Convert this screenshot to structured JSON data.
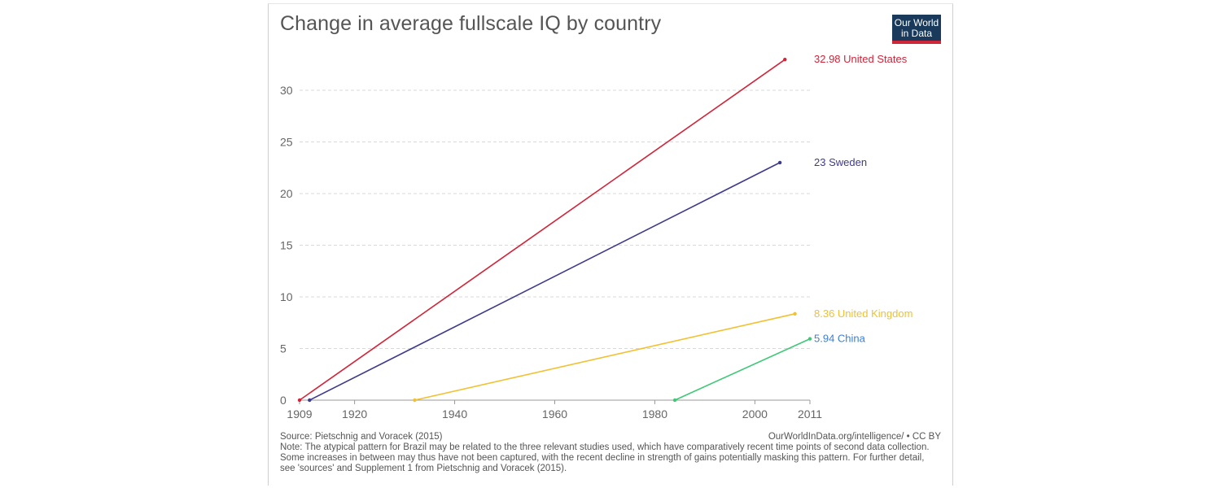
{
  "title": "Change in average fullscale IQ by country",
  "logo": {
    "line1": "Our World",
    "line2": "in Data",
    "bg_color": "#1a3a5c",
    "accent_color": "#d1253a"
  },
  "footer": {
    "source": "Source: Pietschnig and Voracek (2015)",
    "credit": "OurWorldInData.org/intelligence/ • CC BY",
    "note": "Note: The atypical pattern for Brazil may be related to the three relevant studies used, which have comparatively recent time points of second data collection. Some increases in between may thus have not been captured, with the recent decline in strength of gains potentially masking this pattern. For further detail, see 'sources' and Supplement 1 from Pietschnig and Voracek (2015)."
  },
  "chart_data": {
    "type": "line",
    "title": "Change in average fullscale IQ by country",
    "xlabel": "",
    "ylabel": "",
    "xlim": [
      1909,
      2011
    ],
    "ylim": [
      0,
      33
    ],
    "x_ticks": [
      "1909",
      "1920",
      "1940",
      "1960",
      "1980",
      "2000",
      "2011"
    ],
    "y_ticks": [
      "0",
      "5",
      "10",
      "15",
      "20",
      "25",
      "30"
    ],
    "grid": "horizontal dashed",
    "series": [
      {
        "name": "United States",
        "label": "32.98 United States",
        "color": "#d1253a",
        "points": [
          [
            1909,
            0
          ],
          [
            2006,
            32.98
          ]
        ]
      },
      {
        "name": "Sweden",
        "label": "23 Sweden",
        "color": "#3e3a8c",
        "points": [
          [
            1911,
            0
          ],
          [
            2005,
            23
          ]
        ]
      },
      {
        "name": "United Kingdom",
        "label": "8.36 United Kingdom",
        "color": "#f2c030",
        "points": [
          [
            1932,
            0
          ],
          [
            2008,
            8.36
          ]
        ]
      },
      {
        "name": "China",
        "label": "5.94 China",
        "color": "#3fc977",
        "label_color": "#3d7fd4",
        "points": [
          [
            1984,
            0
          ],
          [
            2011,
            5.94
          ]
        ]
      }
    ]
  }
}
